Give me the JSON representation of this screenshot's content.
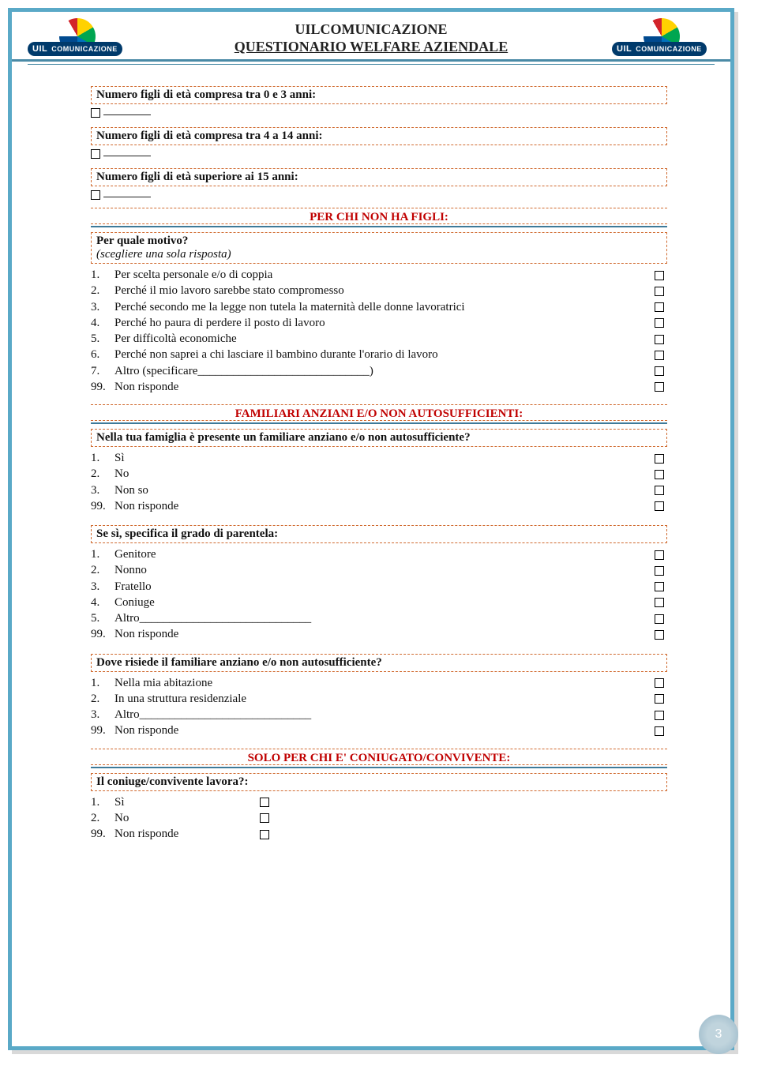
{
  "header": {
    "line1": "UILCOMUNICAZIONE",
    "line2": "QUESTIONARIO WELFARE AZIENDALE",
    "logo_pill_main": "UIL",
    "logo_pill_rest": "COMUNICAZIONE"
  },
  "q_figli_0_3": "Numero figli di età compresa tra 0 e 3 anni:",
  "q_figli_4_14": "Numero figli di età compresa tra 4 a 14 anni:",
  "q_figli_15": "Numero figli di età superiore ai 15 anni:",
  "sec_no_figli": "PER CHI NON HA FIGLI:",
  "motivo_title": "Per quale motivo?",
  "motivo_sub": "(scegliere una sola risposta)",
  "motivo_opts": [
    {
      "n": "1.",
      "t": "Per scelta personale e/o di coppia"
    },
    {
      "n": "2.",
      "t": "Perché il mio lavoro sarebbe stato compromesso"
    },
    {
      "n": "3.",
      "t": "Perché secondo me la legge non tutela la maternità delle donne lavoratrici"
    },
    {
      "n": "4.",
      "t": "Perché ho paura di perdere il posto di lavoro"
    },
    {
      "n": "5.",
      "t": "Per difficoltà economiche"
    },
    {
      "n": "6.",
      "t": "Perché non saprei a chi lasciare il bambino durante l'orario di lavoro"
    },
    {
      "n": "7.",
      "t": "Altro (specificare_____________________________)"
    },
    {
      "n": "99.",
      "t": "Non risponde"
    }
  ],
  "sec_familiari": "FAMILIARI ANZIANI E/O NON AUTOSUFFICIENTI:",
  "q_fam_pres": "Nella tua famiglia è presente un familiare anziano e/o non autosufficiente?",
  "yn_opts": [
    {
      "n": "1.",
      "t": "Sì"
    },
    {
      "n": "2.",
      "t": "No"
    },
    {
      "n": "3.",
      "t": "Non so"
    },
    {
      "n": "99.",
      "t": "Non risponde"
    }
  ],
  "q_parentela": "Se sì, specifica il grado di parentela:",
  "parentela_opts": [
    {
      "n": "1.",
      "t": "Genitore"
    },
    {
      "n": "2.",
      "t": "Nonno"
    },
    {
      "n": "3.",
      "t": "Fratello"
    },
    {
      "n": "4.",
      "t": "Coniuge"
    },
    {
      "n": "5.",
      "t": "Altro_____________________________"
    },
    {
      "n": "99.",
      "t": "Non risponde"
    }
  ],
  "q_risiede": "Dove risiede il familiare anziano e/o non autosufficiente?",
  "risiede_opts": [
    {
      "n": "1.",
      "t": "Nella mia abitazione"
    },
    {
      "n": "2.",
      "t": "In una struttura residenziale"
    },
    {
      "n": "3.",
      "t": "Altro_____________________________"
    },
    {
      "n": "99.",
      "t": "Non risponde"
    }
  ],
  "sec_coniugato": "SOLO PER CHI E' CONIUGATO/CONVIVENTE:",
  "q_coniuge_lavora": "Il coniuge/convivente lavora?:",
  "coniuge_opts": [
    {
      "n": "1.",
      "t": "Sì"
    },
    {
      "n": "2.",
      "t": "No"
    },
    {
      "n": "99.",
      "t": "Non risponde"
    }
  ],
  "page_number": "3",
  "colors": {
    "frame_border": "#5aa9c7",
    "section_text": "#c00000",
    "dashed_border": "#d06a2f",
    "underline_rule": "#3e7a99"
  }
}
